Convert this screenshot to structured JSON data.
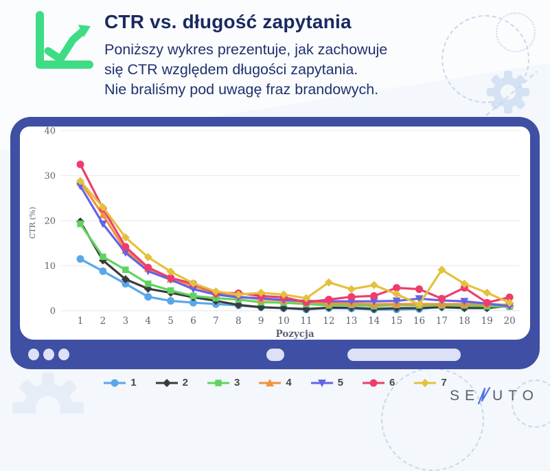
{
  "header": {
    "title": "CTR vs. długość zapytania",
    "subtitle_lines": [
      "Poniższy wykres prezentuje, jak zachowuje",
      "się CTR względem długości zapytania.",
      "Nie braliśmy pod uwagę fraz brandowych."
    ]
  },
  "chart_data": {
    "type": "line",
    "title": "",
    "xlabel": "Pozycja",
    "ylabel": "CTR (%)",
    "x": [
      1,
      2,
      3,
      4,
      5,
      6,
      7,
      8,
      9,
      10,
      11,
      12,
      13,
      14,
      15,
      16,
      17,
      18,
      19,
      20
    ],
    "ylim": [
      0,
      40
    ],
    "yticks": [
      0,
      10,
      20,
      30,
      40
    ],
    "grid": "horizontal-only",
    "legend_position": "bottom",
    "series": [
      {
        "name": "1",
        "marker": "circle",
        "color": "#5aa7e8",
        "values": [
          11.5,
          8.8,
          6.0,
          3.1,
          2.2,
          1.8,
          1.5,
          1.2,
          0.8,
          0.6,
          0.3,
          0.6,
          0.5,
          0.3,
          0.3,
          0.4,
          0.9,
          0.7,
          0.7,
          1.0
        ]
      },
      {
        "name": "2",
        "marker": "diamond",
        "color": "#3b3b3b",
        "values": [
          19.8,
          11.2,
          7.0,
          4.9,
          4.0,
          3.0,
          2.2,
          1.3,
          0.8,
          0.6,
          0.4,
          0.7,
          0.7,
          0.4,
          0.6,
          0.6,
          0.8,
          0.6,
          0.6,
          1.1
        ]
      },
      {
        "name": "3",
        "marker": "square",
        "color": "#5fd35f",
        "values": [
          19.3,
          12.0,
          9.1,
          6.0,
          4.5,
          3.3,
          2.8,
          2.5,
          1.9,
          1.8,
          1.5,
          1.2,
          1.3,
          1.0,
          1.3,
          1.2,
          1.2,
          1.2,
          1.0,
          0.9
        ]
      },
      {
        "name": "4",
        "marker": "triangle-up",
        "color": "#f3913d",
        "values": [
          28.6,
          21.3,
          13.4,
          9.4,
          7.0,
          5.5,
          3.8,
          3.2,
          2.5,
          2.3,
          2.0,
          1.6,
          1.6,
          1.5,
          1.5,
          1.5,
          1.5,
          1.5,
          1.5,
          1.3
        ]
      },
      {
        "name": "5",
        "marker": "triangle-down",
        "color": "#6363e8",
        "values": [
          27.7,
          19.3,
          12.9,
          8.8,
          6.9,
          4.8,
          3.6,
          3.0,
          2.8,
          2.4,
          2.2,
          2.1,
          2.1,
          2.1,
          2.2,
          2.7,
          2.3,
          2.1,
          1.6,
          1.0
        ]
      },
      {
        "name": "6",
        "marker": "circle",
        "color": "#ee3d6c",
        "values": [
          32.5,
          22.7,
          14.2,
          9.6,
          7.3,
          6.0,
          4.0,
          3.9,
          3.3,
          3.0,
          1.9,
          2.5,
          3.1,
          3.3,
          5.1,
          4.8,
          2.7,
          5.1,
          1.8,
          3.0
        ]
      },
      {
        "name": "7",
        "marker": "diamond",
        "color": "#e3c13c",
        "values": [
          28.8,
          23.0,
          16.3,
          11.9,
          8.7,
          6.1,
          4.3,
          3.6,
          4.0,
          3.6,
          2.8,
          6.3,
          4.8,
          5.7,
          3.7,
          1.4,
          9.1,
          6.0,
          4.0,
          1.8
        ]
      }
    ]
  },
  "logo": {
    "prefix": "SE",
    "suffix": "UTO"
  },
  "colors": {
    "accent_green": "#3edc84",
    "frame_blue": "#3f4fa3",
    "title_navy": "#19295f",
    "grid_line": "#e8eaee",
    "deco_blue": "#c9d8ec"
  }
}
